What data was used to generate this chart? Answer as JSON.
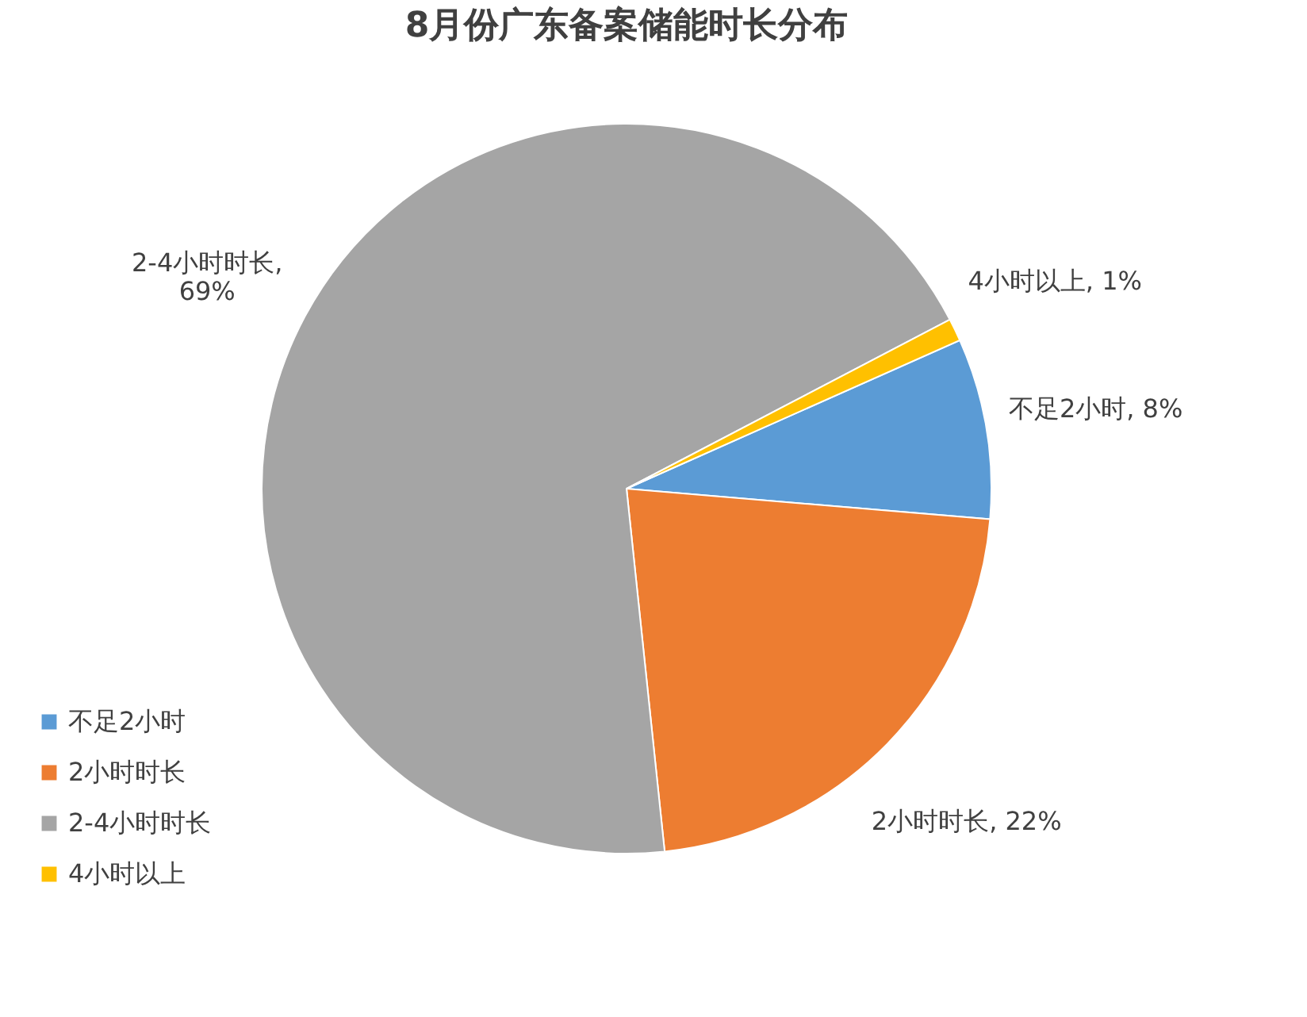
{
  "chart_data": {
    "type": "pie",
    "title": "8月份广东备案储能时长分布",
    "categories": [
      "不足2小时",
      "2小时时长",
      "2-4小时时长",
      "4小时以上"
    ],
    "values": [
      8,
      22,
      69,
      1
    ],
    "colors": [
      "#5b9bd5",
      "#ed7d31",
      "#a5a5a5",
      "#ffc000"
    ],
    "value_labels": [
      "不足2小时, 8%",
      "2小时时长, 22%",
      "2-4小时时长,\n69%",
      "4小时以上, 1%"
    ],
    "legend": "bottom left"
  }
}
